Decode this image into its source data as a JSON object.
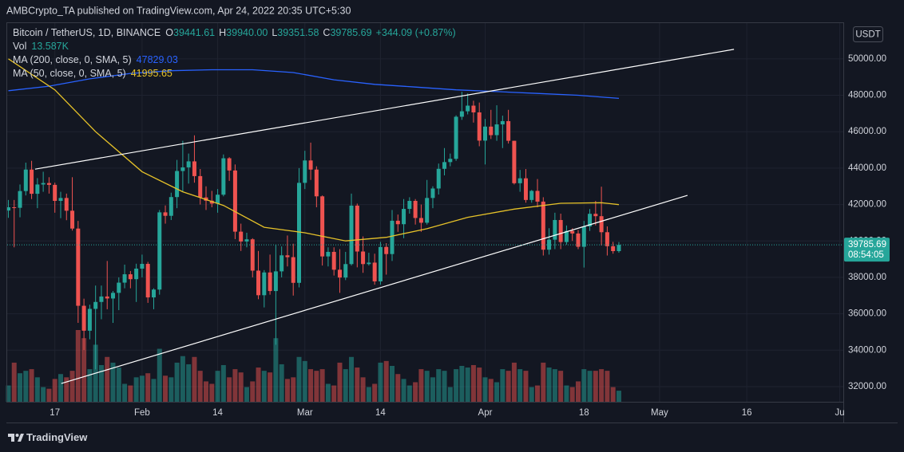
{
  "chart_data": {
    "type": "candlestick",
    "publisher": "AMBCrypto_TA published on TradingView.com, Apr 24, 2022 20:35 UTC+5:30",
    "title": "Bitcoin / TetherUS, 1D, BINANCE",
    "ohlc_legend": [
      {
        "key": "O",
        "text": "39441.61"
      },
      {
        "key": "H",
        "text": "39940.00"
      },
      {
        "key": "L",
        "text": "39351.58"
      },
      {
        "key": "C",
        "text": "39785.69"
      }
    ],
    "change": "+344.09 (+0.87%)",
    "volume_legend": {
      "name": "Vol",
      "text": "13.587K"
    },
    "currency": "USDT",
    "countdown": "08:54:05",
    "brand": "TradingView",
    "up_color": "#26a69a",
    "down_color": "#ef5350",
    "grid": true,
    "x": [
      9,
      10,
      11,
      12,
      13,
      14,
      15,
      16,
      17,
      18,
      19,
      20,
      21,
      22,
      23,
      24,
      25,
      26,
      27,
      28,
      29,
      30,
      31,
      32,
      33,
      34,
      35,
      36,
      37,
      38,
      39,
      40,
      41,
      42,
      43,
      44,
      45,
      46,
      47,
      48,
      49,
      50,
      51,
      52,
      53,
      54,
      55,
      56,
      57,
      58,
      59,
      60,
      61,
      62,
      63,
      64,
      65,
      66,
      67,
      68,
      69,
      70,
      71,
      72,
      73,
      74,
      75,
      76,
      77,
      78,
      79,
      80,
      81,
      82,
      83,
      84,
      85,
      86,
      87,
      88,
      89,
      90,
      91,
      92,
      93,
      94,
      95,
      96,
      97,
      98,
      99,
      100,
      101,
      102,
      103,
      104,
      105,
      106,
      107,
      108,
      109,
      110,
      111,
      112,
      113,
      114
    ],
    "open": [
      41670,
      41850,
      41820,
      42740,
      43920,
      42590,
      43100,
      43180,
      43080,
      42200,
      42360,
      41660,
      40680,
      36440,
      35070,
      36270,
      36650,
      36950,
      36840,
      37150,
      37710,
      38170,
      37900,
      38480,
      38740,
      36900,
      37330,
      41570,
      41380,
      42410,
      43840,
      44040,
      44370,
      43560,
      42390,
      42210,
      42050,
      42540,
      44540,
      43870,
      40510,
      39970,
      40090,
      38370,
      37020,
      38270,
      37250,
      38330,
      39210,
      39110,
      37700,
      43190,
      44420,
      43920,
      42450,
      39150,
      39400,
      38420,
      37990,
      38730,
      41940,
      39420,
      38730,
      38810,
      37780,
      39670,
      39280,
      41110,
      40920,
      41760,
      42200,
      41260,
      41000,
      42360,
      42880,
      43960,
      44330,
      44510,
      46820,
      47120,
      47430,
      47060,
      45510,
      46280,
      45810,
      46400,
      46580,
      45500,
      43170,
      43440,
      42250,
      42750,
      42160,
      39520,
      40070,
      41150,
      39940,
      40550,
      40410,
      39680,
      40800,
      41490,
      41360,
      40480,
      39710,
      39441.61
    ],
    "high": [
      42250,
      42250,
      43100,
      44300,
      44400,
      43450,
      43800,
      43500,
      43200,
      42700,
      42600,
      43500,
      41100,
      36830,
      36500,
      37550,
      37550,
      38900,
      37250,
      38000,
      38700,
      38350,
      38750,
      39250,
      38850,
      37400,
      41700,
      41950,
      42650,
      44450,
      45500,
      44800,
      45800,
      43950,
      43000,
      42750,
      42850,
      44750,
      44600,
      44200,
      40950,
      40450,
      40150,
      39450,
      38400,
      39250,
      39800,
      39700,
      40300,
      39850,
      44000,
      44950,
      45400,
      44100,
      42500,
      39650,
      39650,
      39550,
      39400,
      42600,
      42050,
      40250,
      39350,
      39300,
      39950,
      39880,
      41700,
      41450,
      42300,
      42400,
      42300,
      42000,
      43350,
      43000,
      44250,
      45100,
      44800,
      46900,
      48190,
      48100,
      47700,
      47600,
      46700,
      47200,
      47450,
      46880,
      47200,
      45500,
      43900,
      43950,
      42800,
      43400,
      42400,
      40700,
      41550,
      41500,
      40850,
      40700,
      40600,
      41100,
      41750,
      42200,
      42980,
      40800,
      39950,
      39940
    ],
    "low": [
      41270,
      39650,
      41300,
      42500,
      42300,
      41800,
      42700,
      42600,
      41550,
      41250,
      41140,
      40570,
      35500,
      34010,
      34600,
      32950,
      35700,
      36250,
      35500,
      36200,
      37400,
      37400,
      36650,
      38000,
      36600,
      36250,
      37050,
      40950,
      41150,
      41800,
      42700,
      43150,
      43200,
      42000,
      41700,
      41850,
      41550,
      42450,
      43300,
      40100,
      39450,
      39650,
      38000,
      36800,
      36350,
      37050,
      34300,
      38000,
      38600,
      37000,
      37450,
      42850,
      43350,
      41850,
      38650,
      38600,
      38100,
      37150,
      37850,
      38650,
      38550,
      38250,
      38650,
      37600,
      37600,
      38150,
      38900,
      40500,
      40150,
      41500,
      40900,
      40500,
      40900,
      41800,
      42550,
      43600,
      44100,
      44400,
      46650,
      46950,
      46500,
      45200,
      44200,
      45600,
      45500,
      45100,
      45350,
      43100,
      42700,
      42100,
      42100,
      41850,
      39200,
      39250,
      39550,
      39550,
      39800,
      40000,
      39550,
      38540,
      40550,
      40850,
      39750,
      39200,
      39300,
      39351.58
    ],
    "close": [
      41850,
      41820,
      42740,
      43920,
      42590,
      43100,
      43180,
      43080,
      42200,
      42360,
      41660,
      40680,
      36440,
      35070,
      36270,
      36650,
      36950,
      36840,
      37150,
      37710,
      38170,
      37900,
      38480,
      38740,
      36900,
      37330,
      41570,
      41380,
      42410,
      43840,
      44040,
      44370,
      43560,
      42390,
      42210,
      42050,
      42540,
      44540,
      43870,
      40510,
      39970,
      40090,
      38370,
      37020,
      38270,
      37250,
      38330,
      39210,
      39110,
      37700,
      43190,
      44420,
      43920,
      42450,
      39150,
      39400,
      38420,
      37990,
      38730,
      41940,
      39420,
      38730,
      38810,
      37780,
      39670,
      39280,
      41110,
      40920,
      41760,
      42200,
      41260,
      41000,
      42360,
      42880,
      43960,
      44330,
      44510,
      46820,
      47120,
      47430,
      47060,
      45510,
      46280,
      45810,
      46400,
      46580,
      45500,
      43170,
      43440,
      42250,
      42750,
      42160,
      39520,
      40070,
      41150,
      39940,
      40550,
      40410,
      39680,
      40800,
      41490,
      41360,
      40480,
      39710,
      39441.61,
      39785.69
    ],
    "volume": [
      20,
      48,
      35,
      38,
      40,
      30,
      18,
      16,
      28,
      34,
      30,
      38,
      88,
      78,
      40,
      70,
      45,
      55,
      48,
      42,
      22,
      20,
      30,
      32,
      35,
      28,
      65,
      32,
      30,
      48,
      56,
      46,
      55,
      38,
      25,
      22,
      38,
      45,
      30,
      40,
      36,
      18,
      25,
      42,
      38,
      36,
      78,
      46,
      28,
      30,
      55,
      50,
      40,
      38,
      40,
      22,
      20,
      48,
      40,
      55,
      42,
      30,
      18,
      22,
      48,
      50,
      44,
      34,
      28,
      20,
      24,
      40,
      38,
      30,
      40,
      38,
      18,
      40,
      44,
      42,
      45,
      42,
      30,
      28,
      24,
      40,
      38,
      48,
      40,
      38,
      18,
      20,
      48,
      42,
      40,
      38,
      20,
      18,
      25,
      40,
      38,
      38,
      40,
      38,
      18,
      13.587
    ],
    "indicators": [
      {
        "name": "MA (200, close, 0, SMA, 5)",
        "color": "#2962ff",
        "x": [
          9,
          16,
          23,
          30,
          37,
          44,
          51,
          58,
          65,
          72,
          79,
          86,
          93,
          100,
          107,
          114
        ],
        "values": [
          48250,
          48500,
          48900,
          49200,
          49350,
          49400,
          49400,
          49250,
          48850,
          48600,
          48450,
          48300,
          48200,
          48100,
          48000,
          47829.03
        ]
      },
      {
        "name": "MA (50, close, 0, SMA, 5)",
        "color": "#e6c229",
        "x": [
          9,
          17,
          24,
          32,
          39,
          46,
          53,
          60,
          67,
          74,
          81,
          88,
          96,
          104,
          111,
          114
        ],
        "values": [
          50000,
          48300,
          46000,
          43800,
          42700,
          41950,
          40750,
          40450,
          40000,
          40200,
          40670,
          41300,
          41750,
          42070,
          42100,
          41995.65
        ]
      }
    ],
    "trendlines": [
      {
        "x": [
          13.6,
          133.8
        ],
        "values": [
          43940,
          50520
        ]
      },
      {
        "x": [
          18.1,
          125.8
        ],
        "values": [
          32170,
          42500
        ]
      }
    ],
    "xlim": [
      8.8,
      152.6
    ],
    "xticks": [
      17,
      {
        "value": 32,
        "label": "Feb"
      },
      {
        "value": 45,
        "label": "14"
      },
      {
        "value": 60,
        "label": "Mar"
      },
      {
        "value": 73,
        "label": "14"
      },
      {
        "value": 91,
        "label": "Apr"
      },
      {
        "value": 108,
        "label": "18"
      },
      {
        "value": 121,
        "label": "May"
      },
      {
        "value": 136,
        "label": "16"
      },
      {
        "value": 152,
        "label": "Ju"
      }
    ],
    "ylim": [
      31168,
      51962
    ],
    "yticks": [
      {
        "value": 32000,
        "label": "32000.00"
      },
      {
        "value": 34000,
        "label": "34000.00"
      },
      {
        "value": 36000,
        "label": "36000.00"
      },
      {
        "value": 38000,
        "label": "38000.00"
      },
      {
        "value": 40000,
        "label": "40000.00"
      },
      {
        "value": 42000,
        "label": "42000.00"
      },
      {
        "value": 44000,
        "label": "44000.00"
      },
      {
        "value": 46000,
        "label": "46000.00"
      },
      {
        "value": 48000,
        "label": "48000.00"
      },
      {
        "value": 50000,
        "label": "50000.00"
      }
    ]
  }
}
